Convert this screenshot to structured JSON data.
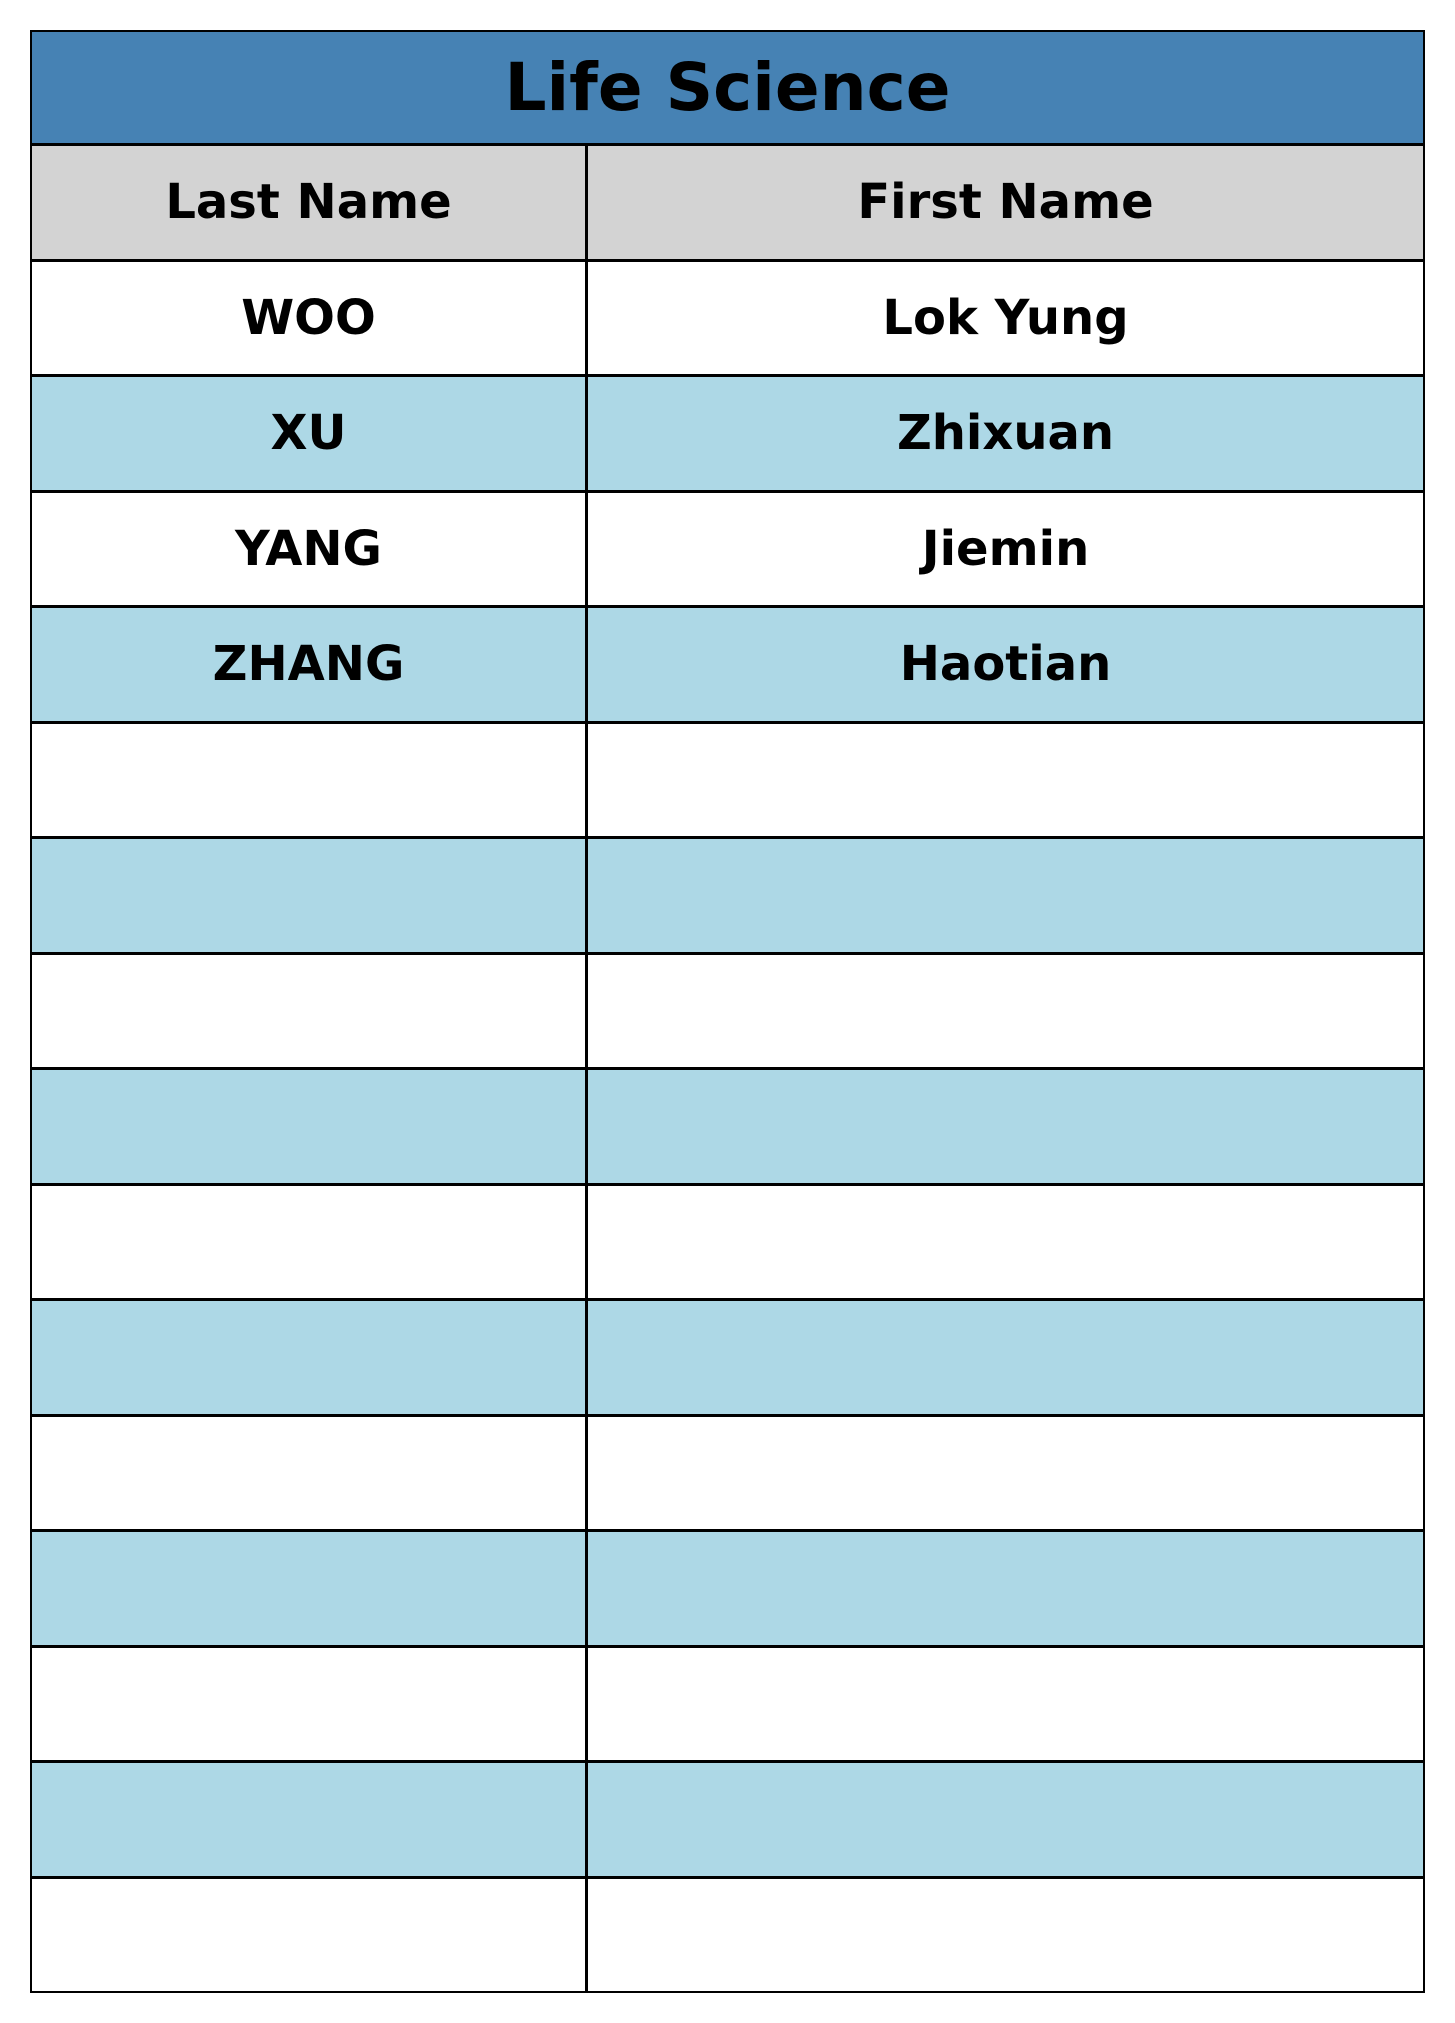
{
  "title": "Life Science",
  "columns": {
    "last_name": "Last Name",
    "first_name": "First Name"
  },
  "rows": [
    {
      "last": "WOO",
      "first": "Lok Yung"
    },
    {
      "last": "XU",
      "first": "Zhixuan"
    },
    {
      "last": "YANG",
      "first": "Jiemin"
    },
    {
      "last": "ZHANG",
      "first": "Haotian"
    },
    {
      "last": "",
      "first": ""
    },
    {
      "last": "",
      "first": ""
    },
    {
      "last": "",
      "first": ""
    },
    {
      "last": "",
      "first": ""
    },
    {
      "last": "",
      "first": ""
    },
    {
      "last": "",
      "first": ""
    },
    {
      "last": "",
      "first": ""
    },
    {
      "last": "",
      "first": ""
    },
    {
      "last": "",
      "first": ""
    },
    {
      "last": "",
      "first": ""
    },
    {
      "last": "",
      "first": ""
    }
  ],
  "colors": {
    "title_background": "#4682b4",
    "header_background": "#d3d3d3",
    "row_stripe": "#add8e6",
    "row_plain": "#ffffff"
  }
}
